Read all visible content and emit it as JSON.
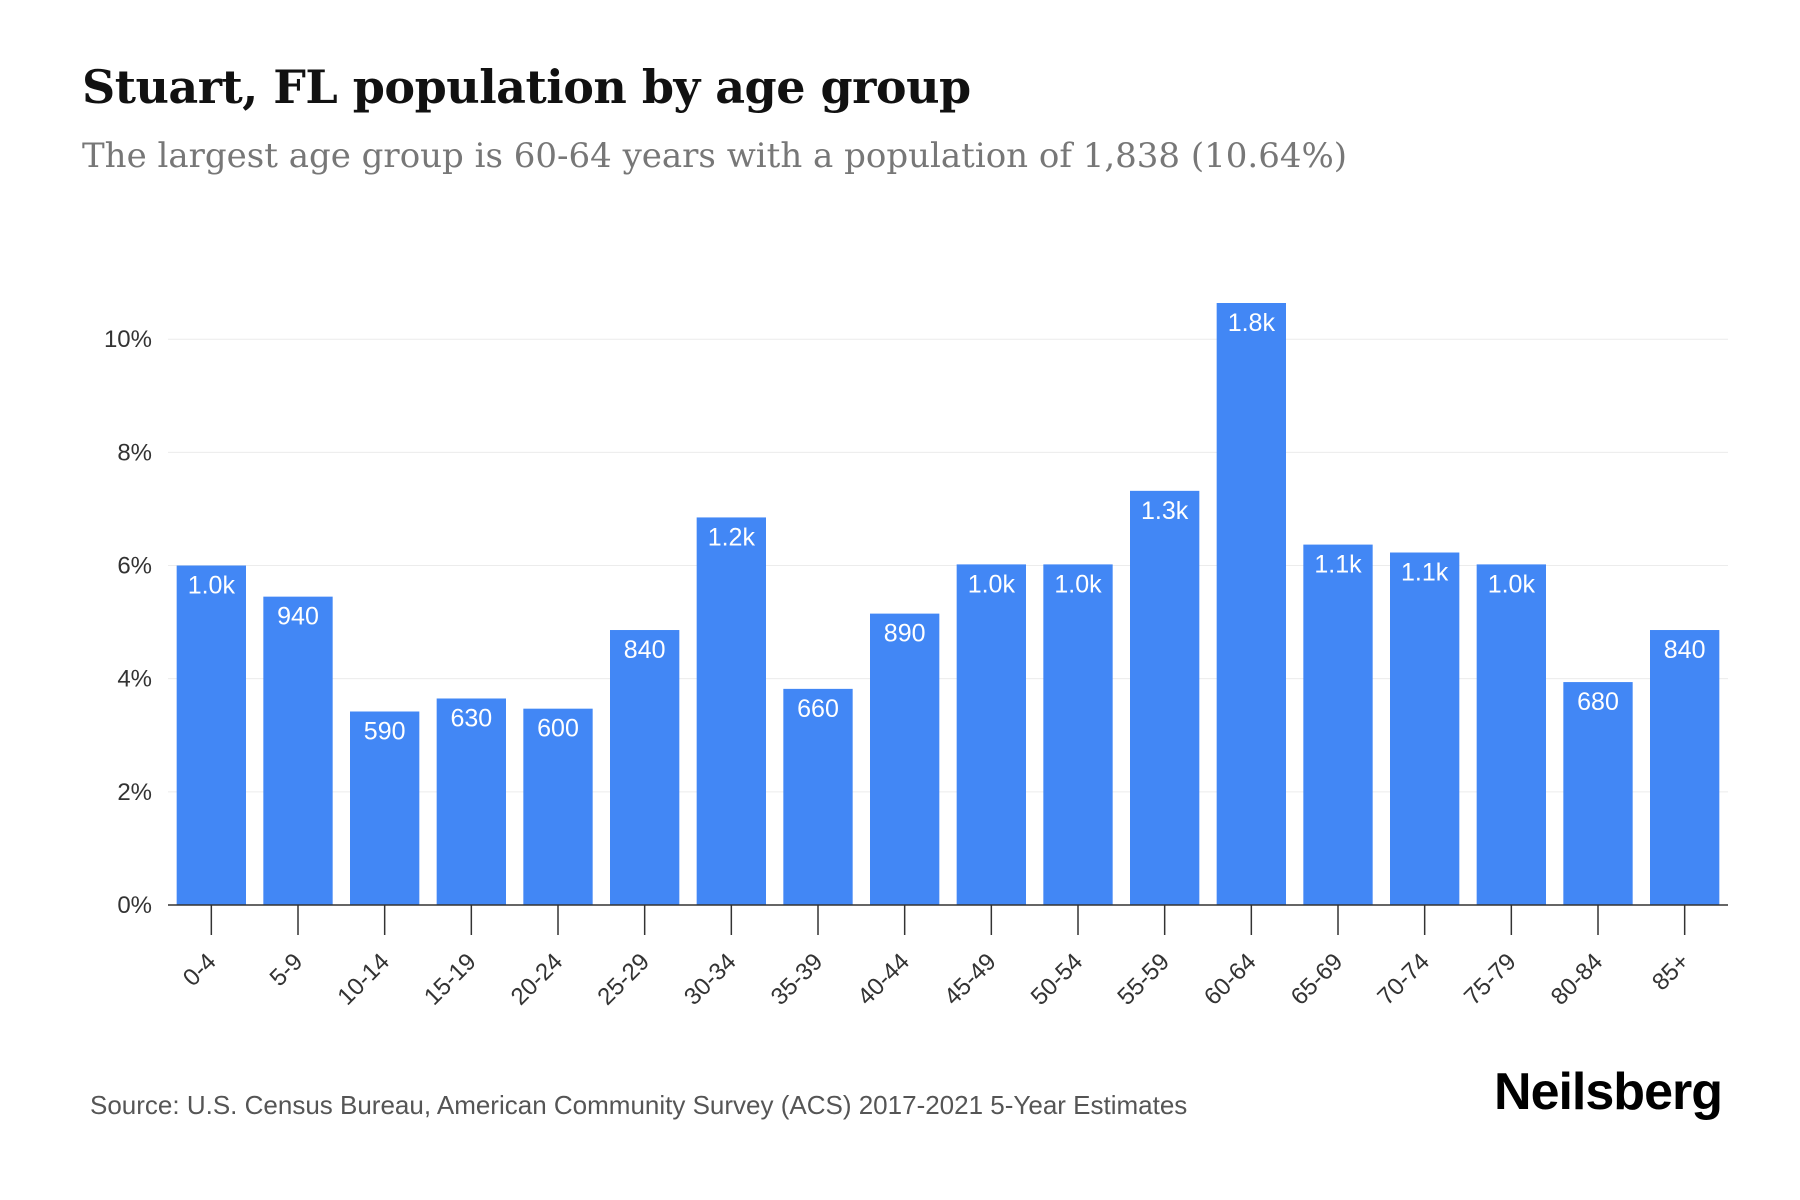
{
  "chart_data": {
    "type": "bar",
    "title": "Stuart, FL population by age group",
    "subtitle": "The largest age group is 60-64 years with a population of 1,838 (10.64%)",
    "categories": [
      "0-4",
      "5-9",
      "10-14",
      "15-19",
      "20-24",
      "25-29",
      "30-34",
      "35-39",
      "40-44",
      "45-49",
      "50-54",
      "55-59",
      "60-64",
      "65-69",
      "70-74",
      "75-79",
      "80-84",
      "85+"
    ],
    "values": [
      6.0,
      5.45,
      3.42,
      3.65,
      3.47,
      4.86,
      6.85,
      3.82,
      5.15,
      6.02,
      6.02,
      7.32,
      10.64,
      6.37,
      6.23,
      6.02,
      3.94,
      4.86
    ],
    "data_labels": [
      "1.0k",
      "940",
      "590",
      "630",
      "600",
      "840",
      "1.2k",
      "660",
      "890",
      "1.0k",
      "1.0k",
      "1.3k",
      "1.8k",
      "1.1k",
      "1.1k",
      "1.0k",
      "680",
      "840"
    ],
    "yticks": [
      0,
      2,
      4,
      6,
      8,
      10
    ],
    "ytick_labels": [
      "0%",
      "2%",
      "4%",
      "6%",
      "8%",
      "10%"
    ],
    "ylim": [
      0,
      10.64
    ],
    "xlabel": "",
    "ylabel": "",
    "grid": true,
    "bar_color": "#4287f5"
  },
  "footer": {
    "source": "Source: U.S. Census Bureau, American Community Survey (ACS) 2017-2021 5-Year Estimates",
    "brand": "Neilsberg"
  }
}
